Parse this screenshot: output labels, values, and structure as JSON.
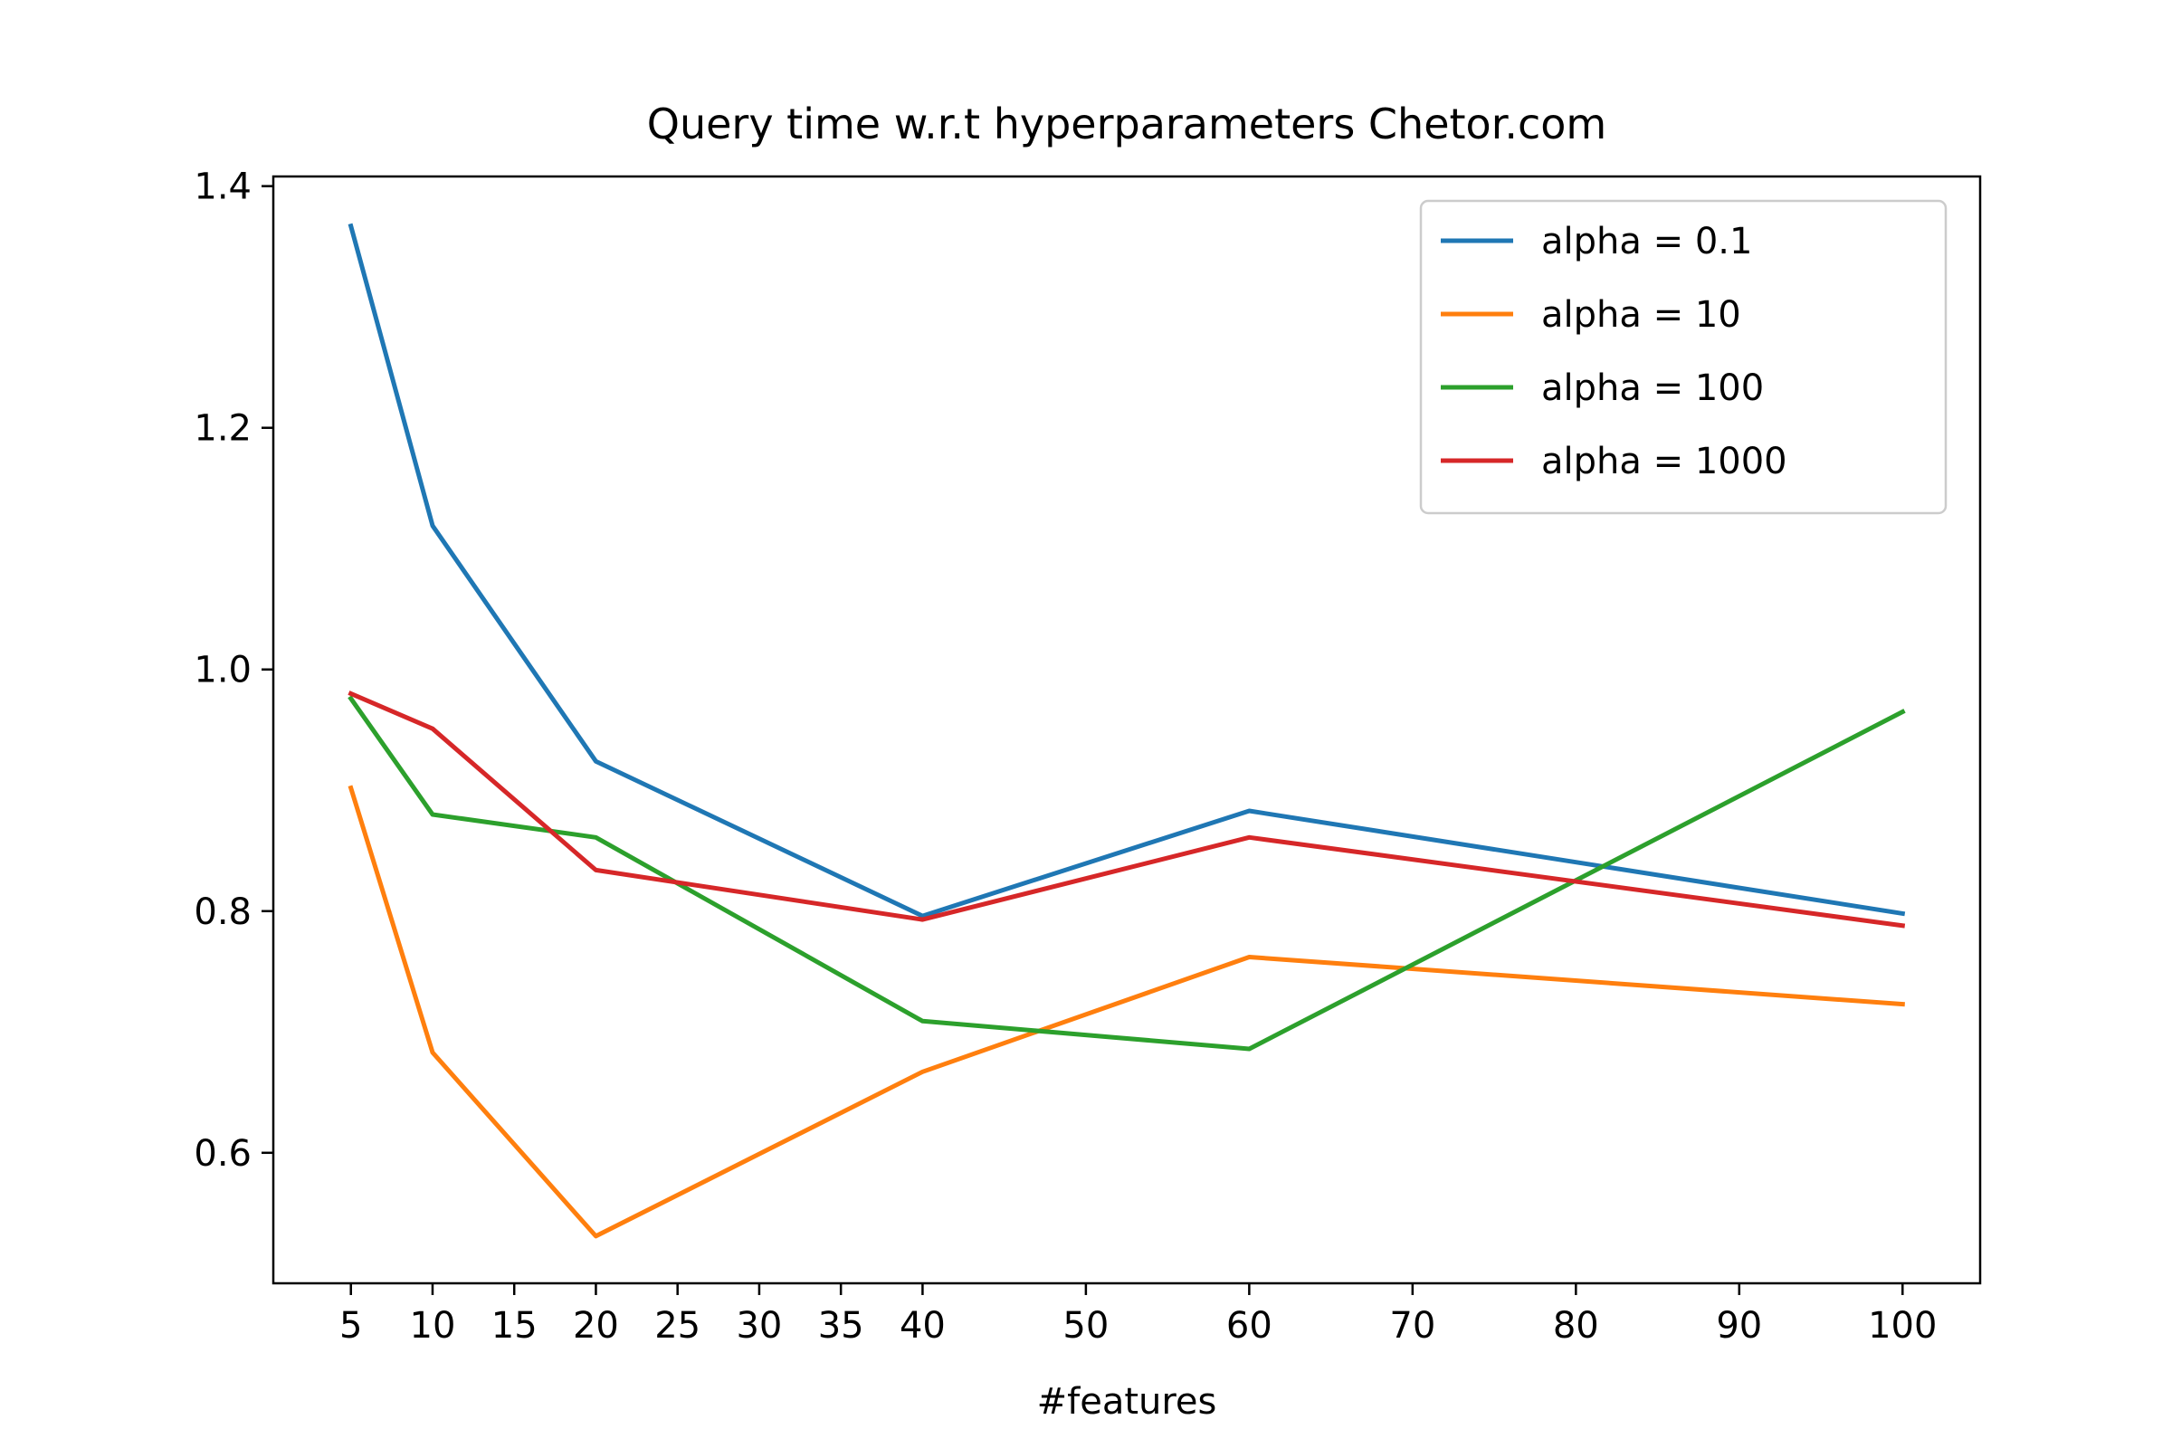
{
  "chart_data": {
    "type": "line",
    "title": "Query time w.r.t hyperparameters Chetor.com",
    "xlabel": "#features",
    "ylabel": "",
    "x": [
      5,
      10,
      20,
      40,
      60,
      100
    ],
    "xticks": [
      5,
      10,
      15,
      20,
      25,
      30,
      35,
      40,
      50,
      60,
      70,
      80,
      90,
      100
    ],
    "xlim": [
      0.25,
      104.75
    ],
    "yticks": [
      0.6,
      0.8,
      1.0,
      1.2,
      1.4
    ],
    "ytick_labels": [
      "0.6",
      "0.8",
      "1.0",
      "1.2",
      "1.4"
    ],
    "ylim": [
      0.492,
      1.408
    ],
    "grid": false,
    "legend_position": "top-right",
    "series": [
      {
        "name": "alpha = 0.1",
        "color": "#1f77b4",
        "values": [
          1.367,
          1.119,
          0.924,
          0.796,
          0.883,
          0.798
        ]
      },
      {
        "name": "alpha = 10",
        "color": "#ff7f0e",
        "values": [
          0.902,
          0.683,
          0.531,
          0.667,
          0.762,
          0.723
        ]
      },
      {
        "name": "alpha = 100",
        "color": "#2ca02c",
        "values": [
          0.976,
          0.88,
          0.861,
          0.709,
          0.686,
          0.965
        ]
      },
      {
        "name": "alpha = 1000",
        "color": "#d62728",
        "values": [
          0.98,
          0.951,
          0.834,
          0.793,
          0.861,
          0.788
        ]
      }
    ]
  }
}
